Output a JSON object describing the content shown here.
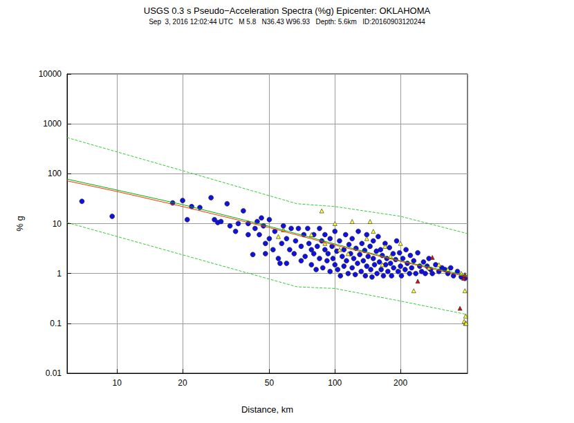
{
  "chart_data": {
    "type": "scatter",
    "title": "USGS 0.3 s Pseudo−Acceleration Spectra (%g) Epicenter: OKLAHOMA",
    "subtitle": "Sep  3, 2016 12:02:44 UTC   M 5.8   N36.43 W96.93   Depth: 5.6km   ID:20160903120244",
    "x_label": "Distance, km",
    "y_label": "% g",
    "log": true,
    "grid": true,
    "xlim": [
      5.9,
      406
    ],
    "xticks": [
      10,
      20,
      50,
      100,
      200
    ],
    "ylim": [
      0.01,
      10000
    ],
    "yticks": [
      0.01,
      0.1,
      1,
      10,
      100,
      1000,
      10000
    ],
    "series": [
      {
        "type": "line",
        "color": "#33cc33",
        "line_style": "dashed",
        "marker": "none",
        "values": [
          [
            5.9,
            530
          ],
          [
            20,
            115
          ],
          [
            67,
            25
          ],
          [
            100,
            22
          ],
          [
            200,
            14
          ],
          [
            406,
            6.3
          ]
        ]
      },
      {
        "type": "line",
        "color": "#33cc33",
        "line_style": "dashed",
        "marker": "none",
        "values": [
          [
            5.9,
            10.5
          ],
          [
            67,
            0.54
          ],
          [
            100,
            0.5
          ],
          [
            200,
            0.28
          ],
          [
            406,
            0.15
          ]
        ]
      },
      {
        "type": "scatter",
        "color": "#1010e0",
        "marker": "circle",
        "values": [
          [
            6.9,
            28
          ],
          [
            9.5,
            14
          ],
          [
            18,
            26
          ],
          [
            20,
            29
          ],
          [
            21,
            12
          ],
          [
            22,
            22
          ],
          [
            24,
            21
          ],
          [
            27,
            33
          ],
          [
            28,
            12
          ],
          [
            29,
            10.5
          ],
          [
            30,
            11
          ],
          [
            32,
            25
          ],
          [
            33,
            9
          ],
          [
            35,
            7
          ],
          [
            36,
            10
          ],
          [
            38,
            18
          ],
          [
            40,
            10
          ],
          [
            40,
            6
          ],
          [
            42,
            2.4
          ],
          [
            43,
            8
          ],
          [
            44,
            11
          ],
          [
            45,
            6
          ],
          [
            46,
            13
          ],
          [
            47,
            9
          ],
          [
            48,
            4
          ],
          [
            48,
            2.5
          ],
          [
            50,
            5
          ],
          [
            50,
            12
          ],
          [
            52,
            3
          ],
          [
            53,
            7
          ],
          [
            55,
            2
          ],
          [
            56,
            1.6
          ],
          [
            57,
            4
          ],
          [
            58,
            9
          ],
          [
            60,
            1.6
          ],
          [
            60,
            5
          ],
          [
            62,
            3
          ],
          [
            63,
            8
          ],
          [
            65,
            2.5
          ],
          [
            66,
            4.5
          ],
          [
            68,
            8
          ],
          [
            70,
            1.8
          ],
          [
            70,
            3.5
          ],
          [
            72,
            6
          ],
          [
            73,
            2.2
          ],
          [
            75,
            8
          ],
          [
            76,
            4
          ],
          [
            78,
            1.5
          ],
          [
            78,
            3
          ],
          [
            80,
            2.5
          ],
          [
            80,
            6
          ],
          [
            82,
            1.2
          ],
          [
            83,
            3.5
          ],
          [
            85,
            8
          ],
          [
            85,
            2
          ],
          [
            87,
            4.5
          ],
          [
            88,
            1.3
          ],
          [
            90,
            3
          ],
          [
            90,
            6
          ],
          [
            92,
            1.8
          ],
          [
            93,
            2.5
          ],
          [
            95,
            5
          ],
          [
            95,
            1.1
          ],
          [
            97,
            3.5
          ],
          [
            98,
            2
          ],
          [
            100,
            1.5
          ],
          [
            100,
            7
          ],
          [
            102,
            2.8
          ],
          [
            103,
            1.2
          ],
          [
            105,
            4.5
          ],
          [
            106,
            0.9
          ],
          [
            108,
            2.2
          ],
          [
            110,
            3
          ],
          [
            110,
            1.4
          ],
          [
            112,
            6
          ],
          [
            113,
            1.8
          ],
          [
            115,
            1
          ],
          [
            116,
            3.8
          ],
          [
            118,
            2.5
          ],
          [
            120,
            1.3
          ],
          [
            120,
            5
          ],
          [
            122,
            2
          ],
          [
            124,
            0.95
          ],
          [
            125,
            3.2
          ],
          [
            127,
            1.6
          ],
          [
            128,
            7
          ],
          [
            130,
            2.4
          ],
          [
            132,
            1.1
          ],
          [
            133,
            4
          ],
          [
            135,
            1.8
          ],
          [
            137,
            2.9
          ],
          [
            138,
            0.9
          ],
          [
            140,
            1.4
          ],
          [
            140,
            6
          ],
          [
            142,
            2.2
          ],
          [
            145,
            3.5
          ],
          [
            146,
            1.2
          ],
          [
            148,
            0.85
          ],
          [
            150,
            2
          ],
          [
            150,
            4.5
          ],
          [
            152,
            1.5
          ],
          [
            155,
            2.8
          ],
          [
            156,
            1
          ],
          [
            158,
            5.5
          ],
          [
            160,
            1.7
          ],
          [
            162,
            3
          ],
          [
            163,
            1.2
          ],
          [
            165,
            2.3
          ],
          [
            167,
            0.9
          ],
          [
            170,
            4
          ],
          [
            171,
            1.5
          ],
          [
            173,
            2
          ],
          [
            175,
            1.1
          ],
          [
            178,
            3.3
          ],
          [
            180,
            1.6
          ],
          [
            182,
            0.9
          ],
          [
            185,
            2.5
          ],
          [
            186,
            1.3
          ],
          [
            190,
            1.9
          ],
          [
            192,
            4.5
          ],
          [
            195,
            1.1
          ],
          [
            198,
            2.6
          ],
          [
            200,
            1.4
          ],
          [
            202,
            0.9
          ],
          [
            205,
            2
          ],
          [
            210,
            1.2
          ],
          [
            212,
            3
          ],
          [
            215,
            1.6
          ],
          [
            220,
            1
          ],
          [
            222,
            2.3
          ],
          [
            225,
            1.3
          ],
          [
            230,
            1.8
          ],
          [
            235,
            1
          ],
          [
            240,
            2.6
          ],
          [
            245,
            1.4
          ],
          [
            250,
            1.1
          ],
          [
            255,
            1.7
          ],
          [
            260,
            1
          ],
          [
            265,
            1.4
          ],
          [
            270,
            2
          ],
          [
            275,
            1.2
          ],
          [
            280,
            1
          ],
          [
            290,
            1.5
          ],
          [
            300,
            1.1
          ],
          [
            310,
            1.3
          ],
          [
            320,
            1.2
          ],
          [
            330,
            1
          ],
          [
            340,
            1.3
          ],
          [
            350,
            0.9
          ],
          [
            365,
            1.1
          ],
          [
            380,
            0.85
          ],
          [
            395,
            0.8
          ]
        ]
      },
      {
        "type": "scatter",
        "color": "#ffff33",
        "marker": "triangle",
        "values": [
          [
            55,
            5.5
          ],
          [
            58,
            7.5
          ],
          [
            78,
            6
          ],
          [
            87,
            18
          ],
          [
            90,
            4
          ],
          [
            100,
            10
          ],
          [
            105,
            3
          ],
          [
            115,
            2.5
          ],
          [
            120,
            11
          ],
          [
            140,
            5
          ],
          [
            145,
            11
          ],
          [
            150,
            7
          ],
          [
            165,
            1.5
          ],
          [
            170,
            3.5
          ],
          [
            180,
            2.2
          ],
          [
            200,
            4
          ],
          [
            230,
            0.45
          ],
          [
            270,
            1.3
          ],
          [
            300,
            1.5
          ],
          [
            330,
            1.2
          ],
          [
            380,
            1.0
          ],
          [
            392,
            0.11
          ],
          [
            395,
            0.45
          ],
          [
            397,
            0.1
          ],
          [
            398,
            0.14
          ],
          [
            400,
            0.1
          ]
        ]
      },
      {
        "type": "scatter",
        "color": "#cc1111",
        "marker": "triangle",
        "values": [
          [
            240,
            0.7
          ],
          [
            280,
            2.1
          ],
          [
            375,
            0.2
          ],
          [
            390,
            0.8
          ],
          [
            395,
            0.95
          ]
        ]
      },
      {
        "type": "line",
        "color": "#00b000",
        "line_style": "solid",
        "marker": "none",
        "values": [
          [
            5.9,
            78
          ],
          [
            10,
            47
          ],
          [
            20,
            24
          ],
          [
            50,
            8.8
          ],
          [
            100,
            3.9
          ],
          [
            200,
            1.8
          ],
          [
            406,
            0.9
          ]
        ]
      },
      {
        "type": "line",
        "color": "#ff3300",
        "line_style": "solid",
        "marker": "none",
        "values": [
          [
            5.9,
            72
          ],
          [
            10,
            44
          ],
          [
            20,
            22
          ],
          [
            50,
            8.3
          ],
          [
            100,
            3.7
          ],
          [
            200,
            1.75
          ],
          [
            406,
            0.85
          ]
        ]
      }
    ]
  }
}
